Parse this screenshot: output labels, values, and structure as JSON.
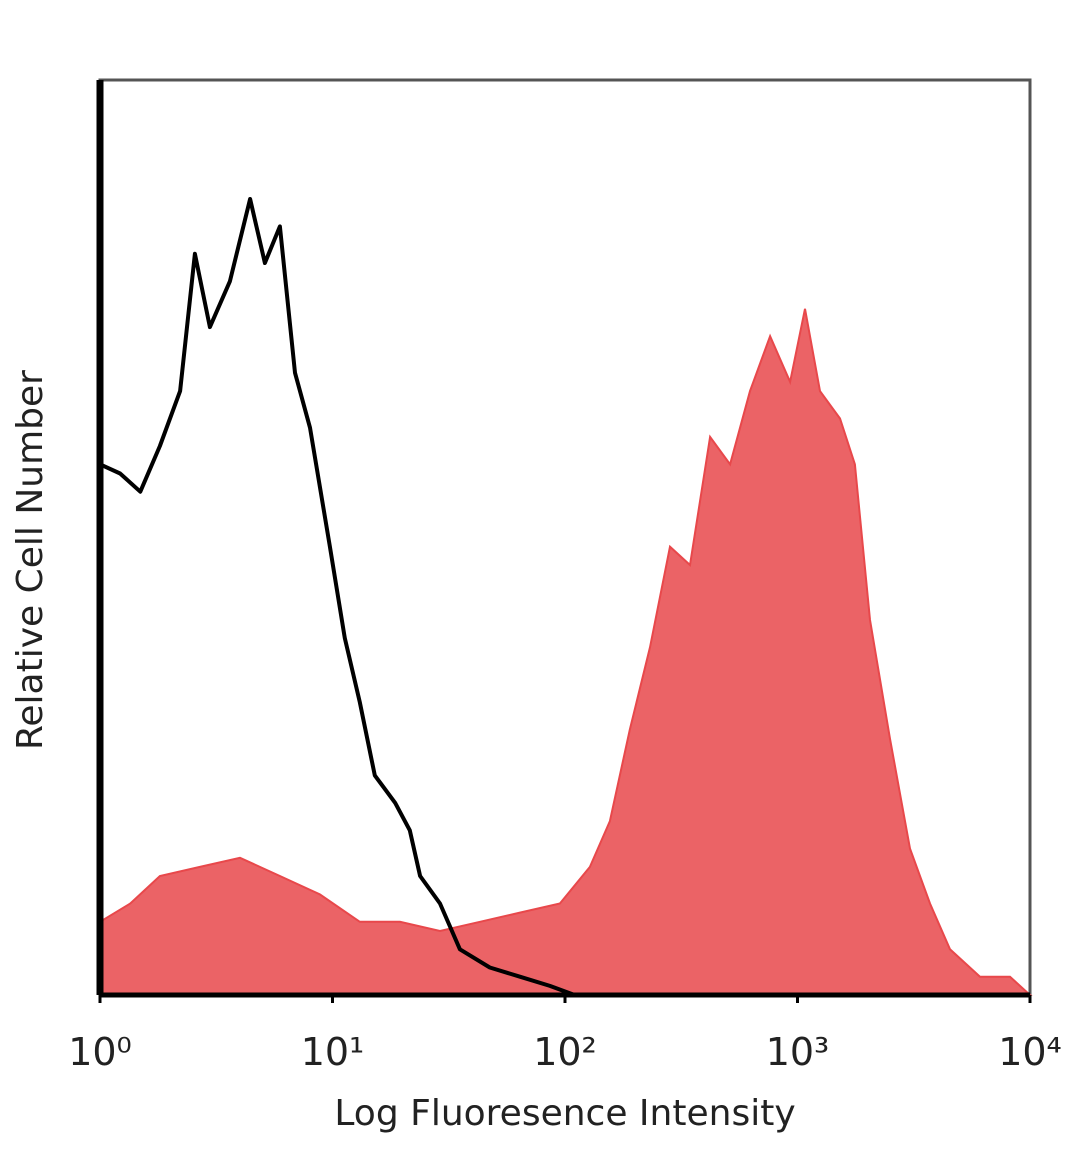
{
  "chart_data": {
    "type": "histogram-overlay",
    "x_label": "Log Fluoresence Intensity",
    "y_label": "Relative Cell Number",
    "xlim": [
      1,
      10000
    ],
    "ylim": [
      0,
      100
    ],
    "log_x": true,
    "xticks": [
      {
        "value": 1,
        "label": "10⁰"
      },
      {
        "value": 10,
        "label": "10¹"
      },
      {
        "value": 100,
        "label": "10²"
      },
      {
        "value": 1000,
        "label": "10³"
      },
      {
        "value": 10000,
        "label": "10⁴"
      }
    ],
    "series": [
      {
        "color": "#e8484b",
        "filled": true,
        "x": [
          1,
          1.35,
          1.81,
          2.69,
          4.0,
          5.94,
          8.83,
          13.1,
          19.5,
          29.0,
          43.1,
          64.0,
          95.1,
          128,
          156,
          190,
          232,
          283,
          345,
          421,
          513,
          625,
          762,
          929,
          1077,
          1250,
          1524,
          1766,
          2051,
          2500,
          3048,
          3715,
          4529,
          6095,
          8204,
          10000
        ],
        "values": [
          8,
          10,
          13,
          14,
          15,
          13,
          11,
          8,
          8,
          7,
          8,
          9,
          10,
          14,
          19,
          29,
          38,
          49,
          47,
          61,
          58,
          66,
          72,
          67,
          75,
          66,
          63,
          58,
          41,
          28,
          16,
          10,
          5,
          2,
          2,
          0
        ]
      },
      {
        "color": "#000000",
        "filled": false,
        "x": [
          1,
          1.22,
          1.49,
          1.81,
          2.21,
          2.56,
          2.97,
          3.62,
          4.42,
          5.12,
          5.94,
          6.9,
          8.0,
          9.75,
          11.3,
          13.1,
          15.2,
          18.6,
          21.5,
          23.8,
          29.0,
          35.3,
          47.5,
          64.0,
          86.1,
          110
        ],
        "values": [
          58,
          57,
          55,
          60,
          66,
          81,
          73,
          78,
          87,
          80,
          84,
          68,
          62,
          49,
          39,
          32,
          24,
          21,
          18,
          13,
          10,
          5,
          3,
          2,
          1,
          0
        ]
      }
    ]
  }
}
